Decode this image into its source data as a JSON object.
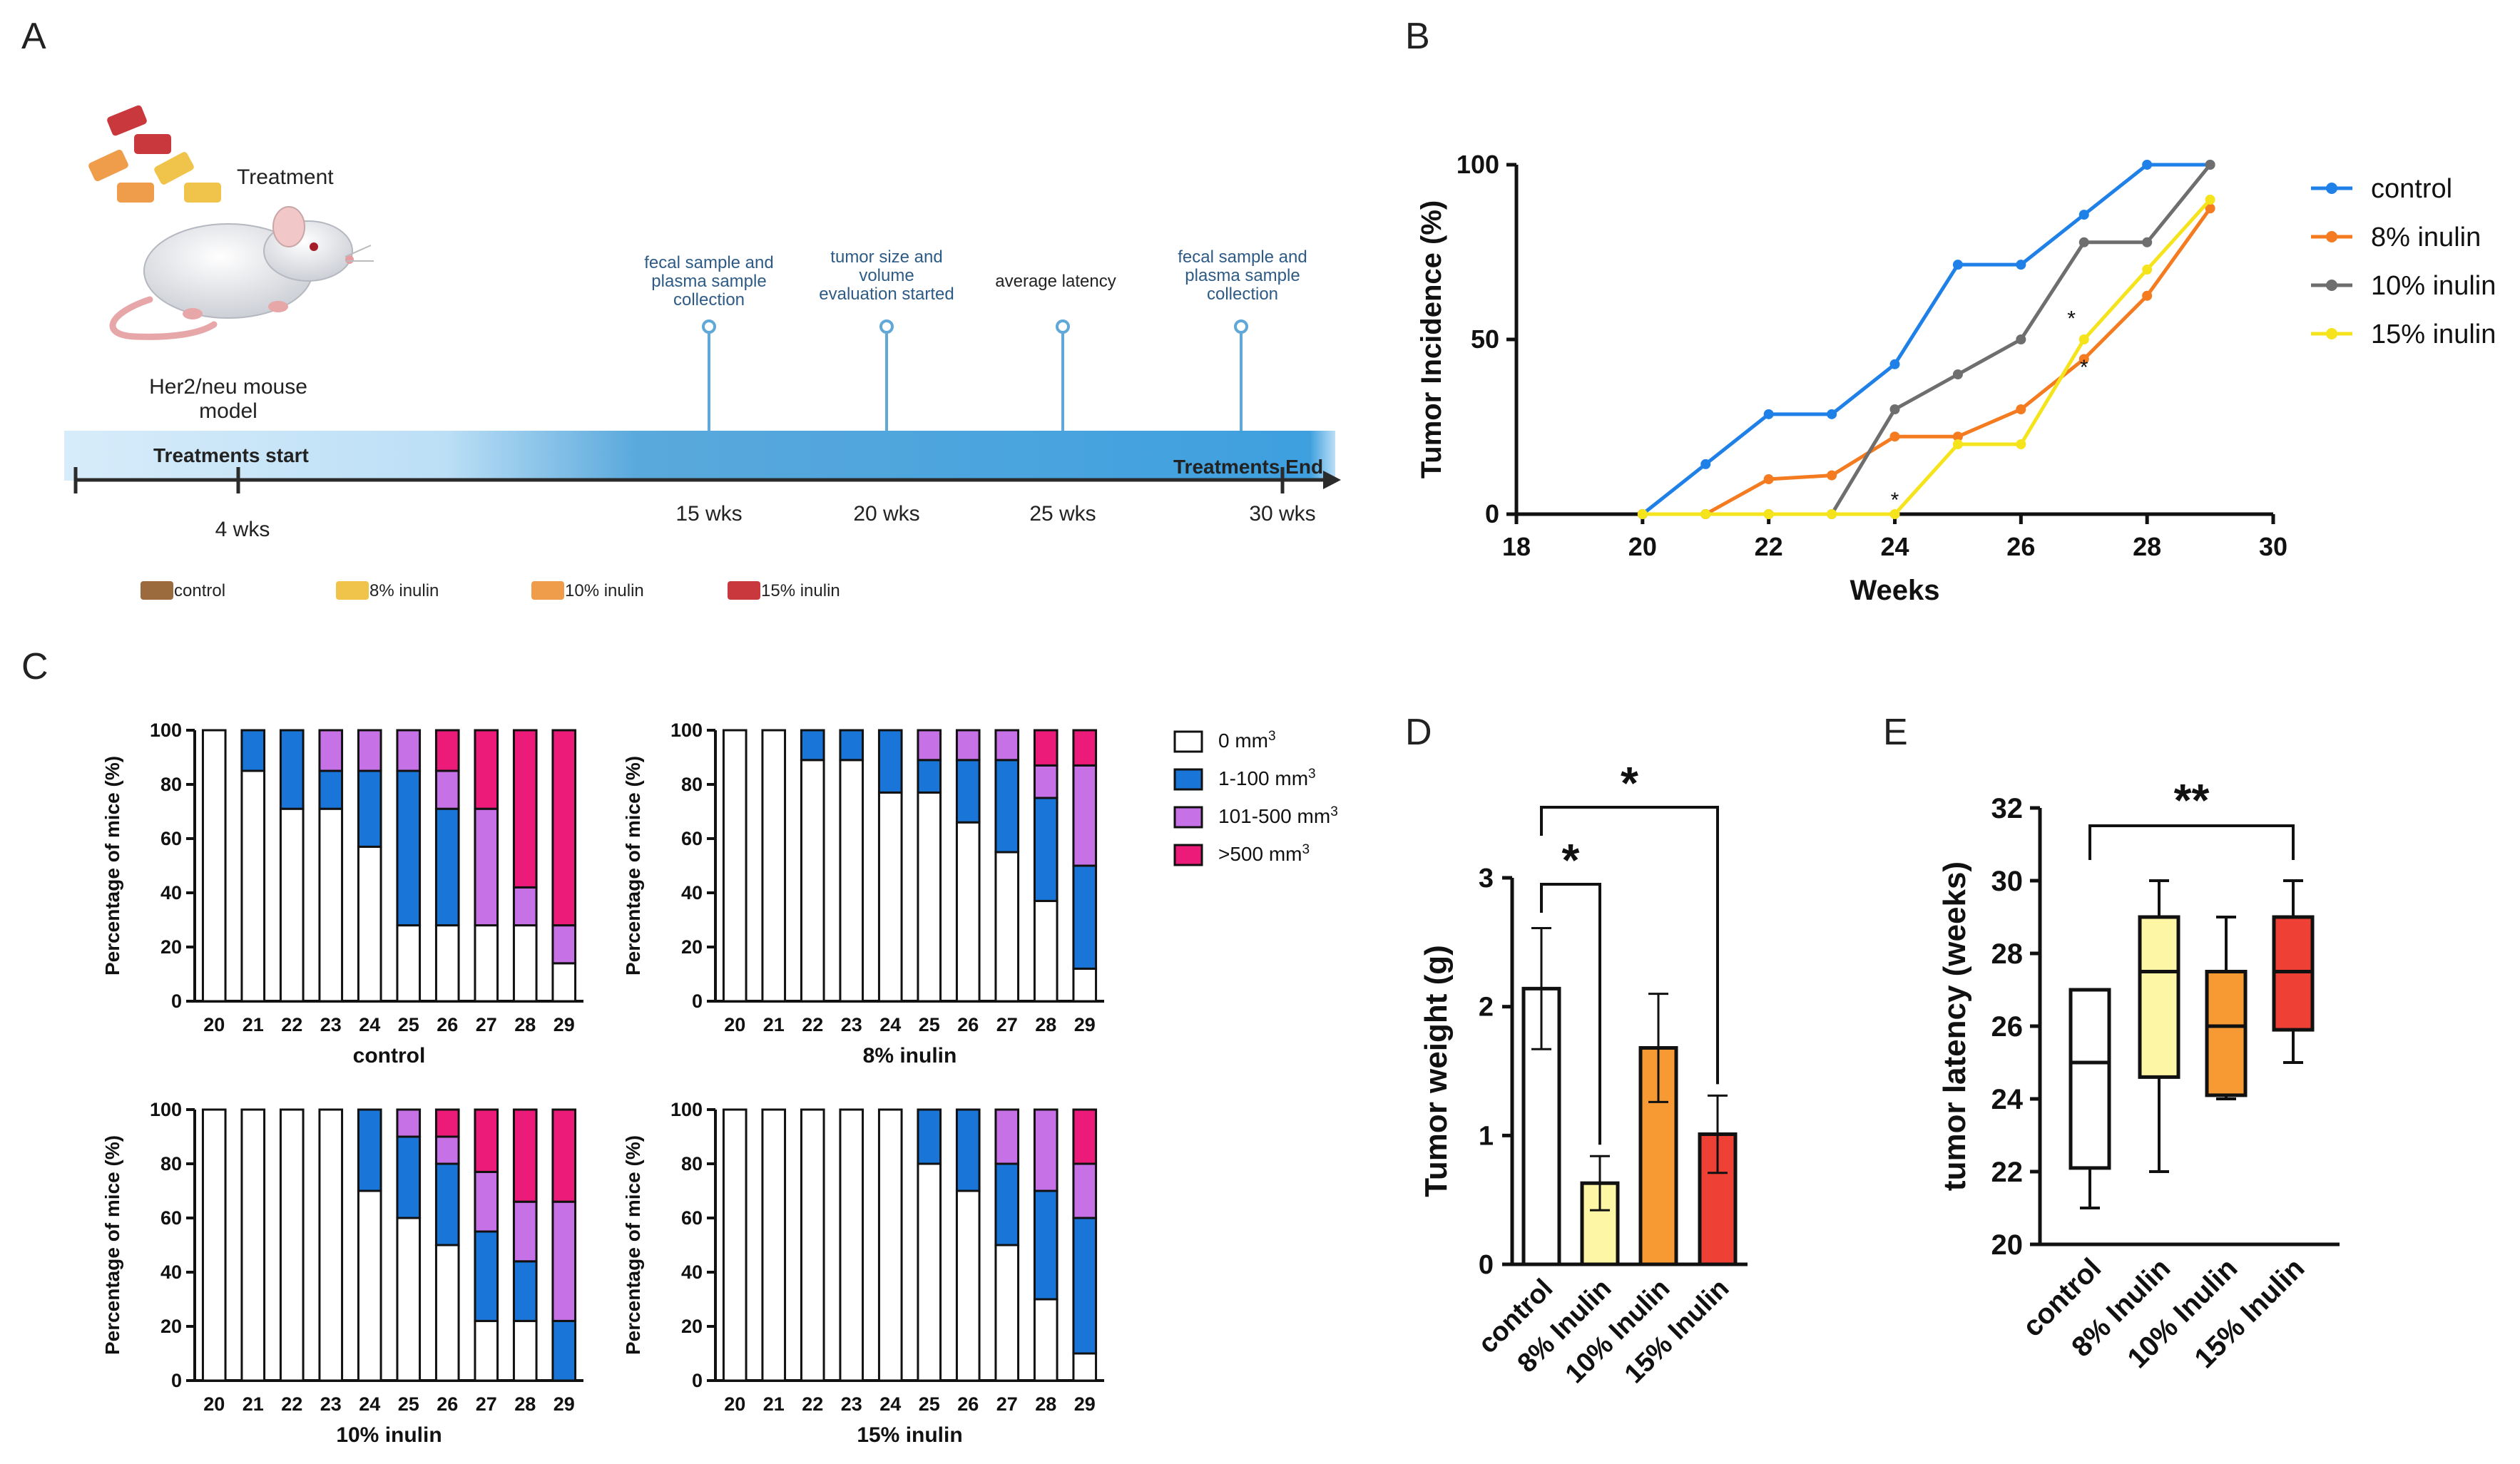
{
  "colors": {
    "control": "#1f80e8",
    "inulin8": "#f47b20",
    "inulin10": "#6e6e6e",
    "inulin15": "#f5e41c",
    "bin_0": "#ffffff",
    "bin_1": "#1976d8",
    "bin_2": "#c771e6",
    "bin_3": "#ec1a78",
    "bar_d_control": "#ffffff",
    "bar_d_8": "#fdf6a5",
    "bar_d_10": "#f79a33",
    "bar_d_15": "#ee4035",
    "timeline_blue": "#3fa2dd",
    "timeline_light": "#cfe8f8",
    "pin": "#5fa8d8",
    "event_text": "#2d5b86"
  },
  "panelA": {
    "label": "A",
    "treatment_label": "Treatment",
    "mouse_label_line1": "Her2/neu mouse",
    "mouse_label_line2": "model",
    "start_label": "Treatments start",
    "end_label": "Treatments End",
    "events": [
      {
        "lines": [
          "fecal sample and",
          "plasma sample",
          "collection"
        ]
      },
      {
        "lines": [
          "tumor size and",
          "volume",
          "evaluation started"
        ]
      },
      {
        "lines": [
          "average latency"
        ]
      },
      {
        "lines": [
          "fecal sample and",
          "plasma sample",
          "collection"
        ]
      }
    ],
    "week_labels": [
      "4 wks",
      "15 wks",
      "20 wks",
      "25 wks",
      "30 wks"
    ],
    "pellet_legend": [
      {
        "label": "control",
        "color": "#9b6b3d"
      },
      {
        "label": "8% inulin",
        "color": "#f0c44a"
      },
      {
        "label": "10% inulin",
        "color": "#ef9d4a"
      },
      {
        "label": "15% inulin",
        "color": "#c9383d"
      }
    ]
  },
  "panelB": {
    "label": "B"
  },
  "panelC": {
    "label": "C"
  },
  "panelD": {
    "label": "D"
  },
  "panelE": {
    "label": "E"
  },
  "chart_data": [
    {
      "id": "B",
      "type": "line",
      "xlabel": "Weeks",
      "ylabel": "Tumor Incidence (%)",
      "xlim": [
        18,
        30
      ],
      "ylim": [
        0,
        100
      ],
      "xticks": [
        18,
        20,
        22,
        24,
        26,
        28,
        30
      ],
      "yticks": [
        0,
        50,
        100
      ],
      "series": [
        {
          "name": "control",
          "color": "#1f80e8",
          "x": [
            20,
            21,
            22,
            23,
            24,
            25,
            26,
            27,
            28,
            29
          ],
          "y": [
            0,
            14.3,
            28.6,
            28.6,
            42.9,
            71.4,
            71.4,
            85.7,
            100,
            100
          ]
        },
        {
          "name": "8% inulin",
          "color": "#f47b20",
          "x": [
            20,
            21,
            22,
            23,
            24,
            25,
            26,
            27,
            28,
            29
          ],
          "y": [
            0,
            0,
            10,
            11.1,
            22.2,
            22.2,
            30,
            44.4,
            62.5,
            87.5
          ]
        },
        {
          "name": "10% inulin",
          "color": "#6e6e6e",
          "x": [
            20,
            21,
            22,
            23,
            24,
            25,
            26,
            27,
            28,
            29
          ],
          "y": [
            0,
            0,
            0,
            0,
            30,
            40,
            50,
            77.8,
            77.8,
            100
          ]
        },
        {
          "name": "15% inulin",
          "color": "#f5e41c",
          "x": [
            20,
            21,
            22,
            23,
            24,
            25,
            26,
            27,
            28,
            29
          ],
          "y": [
            0,
            0,
            0,
            0,
            0,
            20,
            20,
            50,
            70,
            90
          ]
        }
      ],
      "annotations": [
        {
          "text": "*",
          "x": 24,
          "y": 2
        },
        {
          "text": "*",
          "x": 26.8,
          "y": 54
        },
        {
          "text": "*",
          "x": 27,
          "y": 40
        }
      ]
    },
    {
      "id": "C",
      "type": "bar",
      "stacked": true,
      "ylabel": "Percentage of mice (%)",
      "categories": [
        "20",
        "21",
        "22",
        "23",
        "24",
        "25",
        "26",
        "27",
        "28",
        "29"
      ],
      "ylim": [
        0,
        100
      ],
      "yticks": [
        0,
        20,
        40,
        60,
        80,
        100
      ],
      "legend": [
        {
          "label": "0 mm",
          "sup": "3"
        },
        {
          "label": "1-100 mm",
          "sup": "3"
        },
        {
          "label": "101-500 mm",
          "sup": "3"
        },
        {
          "label": ">500 mm",
          "sup": "3"
        }
      ],
      "panels": [
        {
          "title": "control",
          "stacks": [
            [
              100,
              0,
              0,
              0
            ],
            [
              85,
              15,
              0,
              0
            ],
            [
              71,
              29,
              0,
              0
            ],
            [
              71,
              14,
              15,
              0
            ],
            [
              57,
              28,
              15,
              0
            ],
            [
              28,
              57,
              15,
              0
            ],
            [
              28,
              43,
              14,
              15
            ],
            [
              28,
              0,
              43,
              29
            ],
            [
              28,
              0,
              14,
              58
            ],
            [
              14,
              0,
              14,
              72
            ]
          ]
        },
        {
          "title": "8% inulin",
          "stacks": [
            [
              100,
              0,
              0,
              0
            ],
            [
              100,
              0,
              0,
              0
            ],
            [
              89,
              11,
              0,
              0
            ],
            [
              89,
              11,
              0,
              0
            ],
            [
              77,
              23,
              0,
              0
            ],
            [
              77,
              12,
              11,
              0
            ],
            [
              66,
              23,
              11,
              0
            ],
            [
              55,
              34,
              11,
              0
            ],
            [
              37,
              38,
              12,
              13
            ],
            [
              12,
              38,
              37,
              13
            ]
          ]
        },
        {
          "title": "10% inulin",
          "stacks": [
            [
              100,
              0,
              0,
              0
            ],
            [
              100,
              0,
              0,
              0
            ],
            [
              100,
              0,
              0,
              0
            ],
            [
              100,
              0,
              0,
              0
            ],
            [
              70,
              30,
              0,
              0
            ],
            [
              60,
              30,
              10,
              0
            ],
            [
              50,
              30,
              10,
              10
            ],
            [
              22,
              33,
              22,
              23
            ],
            [
              22,
              22,
              22,
              34
            ],
            [
              0,
              22,
              44,
              34
            ]
          ]
        },
        {
          "title": "15% inulin",
          "stacks": [
            [
              100,
              0,
              0,
              0
            ],
            [
              100,
              0,
              0,
              0
            ],
            [
              100,
              0,
              0,
              0
            ],
            [
              100,
              0,
              0,
              0
            ],
            [
              100,
              0,
              0,
              0
            ],
            [
              80,
              20,
              0,
              0
            ],
            [
              70,
              30,
              0,
              0
            ],
            [
              50,
              30,
              20,
              0
            ],
            [
              30,
              40,
              30,
              0
            ],
            [
              10,
              50,
              20,
              20
            ]
          ]
        }
      ]
    },
    {
      "id": "D",
      "type": "bar",
      "ylabel": "Tumor weight (g)",
      "categories": [
        "control",
        "8% Inulin",
        "10% Inulin",
        "15% Inulin"
      ],
      "values": [
        2.14,
        0.63,
        1.68,
        1.01
      ],
      "errors": [
        0.47,
        0.21,
        0.42,
        0.3
      ],
      "ylim": [
        0,
        3
      ],
      "yticks": [
        0,
        1,
        2,
        3
      ],
      "significance": [
        {
          "from": 0,
          "to": 1,
          "label": "*"
        },
        {
          "from": 0,
          "to": 3,
          "label": "*"
        }
      ]
    },
    {
      "id": "E",
      "type": "box",
      "ylabel": "tumor latency (weeks)",
      "categories": [
        "control",
        "8% Inulin",
        "10% Inulin",
        "15% Inulin"
      ],
      "boxes": [
        {
          "min": 21,
          "q1": 22.1,
          "median": 25,
          "q3": 27,
          "max": 27
        },
        {
          "min": 22,
          "q1": 24.6,
          "median": 27.5,
          "q3": 29,
          "max": 30
        },
        {
          "min": 24,
          "q1": 24.1,
          "median": 26,
          "q3": 27.5,
          "max": 29
        },
        {
          "min": 25,
          "q1": 25.9,
          "median": 27.5,
          "q3": 29,
          "max": 30
        }
      ],
      "ylim": [
        20,
        32
      ],
      "yticks": [
        20,
        22,
        24,
        26,
        28,
        30,
        32
      ],
      "significance": [
        {
          "from": 0,
          "to": 3,
          "label": "**"
        }
      ]
    }
  ]
}
